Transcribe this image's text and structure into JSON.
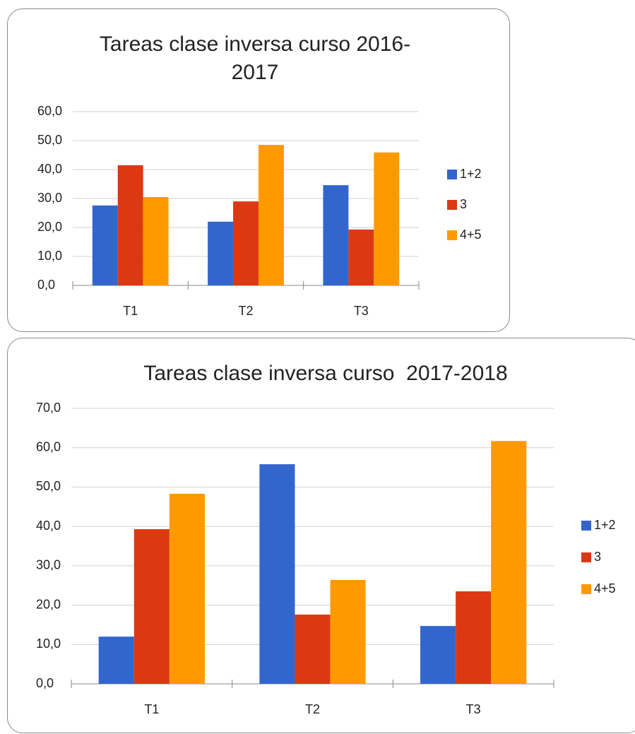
{
  "chart_data": [
    {
      "type": "bar",
      "title": "Tareas clase inversa curso 2016-2017",
      "categories": [
        "T1",
        "T2",
        "T3"
      ],
      "series": [
        {
          "name": "1+2",
          "color": "#3366cc",
          "values": [
            27.6,
            22.0,
            34.6
          ]
        },
        {
          "name": "3",
          "color": "#dc3912",
          "values": [
            41.5,
            29.0,
            19.3
          ]
        },
        {
          "name": "4+5",
          "color": "#ff9900",
          "values": [
            30.5,
            48.5,
            45.9
          ]
        }
      ],
      "ylim": [
        0,
        60
      ],
      "yticks": [
        {
          "value": 0,
          "label": "0,0"
        },
        {
          "value": 10,
          "label": "10,0"
        },
        {
          "value": 20,
          "label": "20,0"
        },
        {
          "value": 30,
          "label": "30,0"
        },
        {
          "value": 40,
          "label": "40,0"
        },
        {
          "value": 50,
          "label": "50,0"
        },
        {
          "value": 60,
          "label": "60,0"
        }
      ],
      "grid": true,
      "legend": "right"
    },
    {
      "type": "bar",
      "title": "Tareas clase inversa curso  2017-2018",
      "categories": [
        "T1",
        "T2",
        "T3"
      ],
      "series": [
        {
          "name": "1+2",
          "color": "#3366cc",
          "values": [
            12.0,
            55.8,
            14.7
          ]
        },
        {
          "name": "3",
          "color": "#dc3912",
          "values": [
            39.3,
            17.6,
            23.5
          ]
        },
        {
          "name": "4+5",
          "color": "#ff9900",
          "values": [
            48.3,
            26.4,
            61.7
          ]
        }
      ],
      "ylim": [
        0,
        70
      ],
      "yticks": [
        {
          "value": 0,
          "label": "0,0"
        },
        {
          "value": 10,
          "label": "10,0"
        },
        {
          "value": 20,
          "label": "20,0"
        },
        {
          "value": 30,
          "label": "30,0"
        },
        {
          "value": 40,
          "label": "40,0"
        },
        {
          "value": 50,
          "label": "50,0"
        },
        {
          "value": 60,
          "label": "60,0"
        },
        {
          "value": 70,
          "label": "70,0"
        }
      ],
      "grid": true,
      "legend": "right"
    }
  ]
}
